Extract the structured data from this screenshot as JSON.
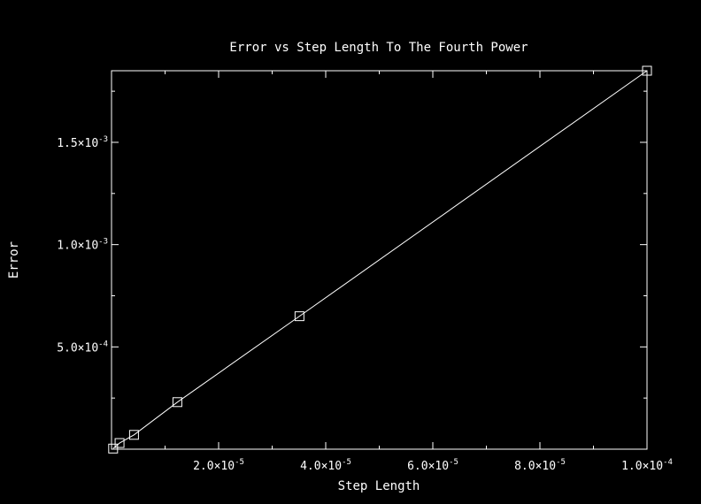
{
  "chart_data": {
    "type": "line",
    "title": "Error vs Step Length To The Fourth Power",
    "xlabel": "Step Length",
    "ylabel": "Error",
    "xlim": [
      0,
      0.0001
    ],
    "ylim": [
      0,
      0.00185
    ],
    "x_ticks": [
      {
        "mant": "2.0",
        "exp": "-5"
      },
      {
        "mant": "4.0",
        "exp": "-5"
      },
      {
        "mant": "6.0",
        "exp": "-5"
      },
      {
        "mant": "8.0",
        "exp": "-5"
      },
      {
        "mant": "1.0",
        "exp": "-4"
      }
    ],
    "y_ticks": [
      {
        "mant": "5.0",
        "exp": "-4"
      },
      {
        "mant": "1.0",
        "exp": "-3"
      },
      {
        "mant": "1.5",
        "exp": "-3"
      }
    ],
    "x_tick_values": [
      2e-05,
      4e-05,
      6e-05,
      8e-05,
      0.0001
    ],
    "y_tick_values": [
      0.0005,
      0.001,
      0.0015
    ],
    "series": [
      {
        "marker": "square",
        "x": [
          3e-07,
          1.5e-06,
          4.2e-06,
          1.23e-05,
          3.51e-05,
          0.0001
        ],
        "y": [
          3e-06,
          3e-05,
          7e-05,
          0.00023,
          0.00065,
          0.00185
        ]
      }
    ],
    "grid": false,
    "colors": {
      "background": "#000000",
      "foreground": "#ffffff"
    }
  }
}
